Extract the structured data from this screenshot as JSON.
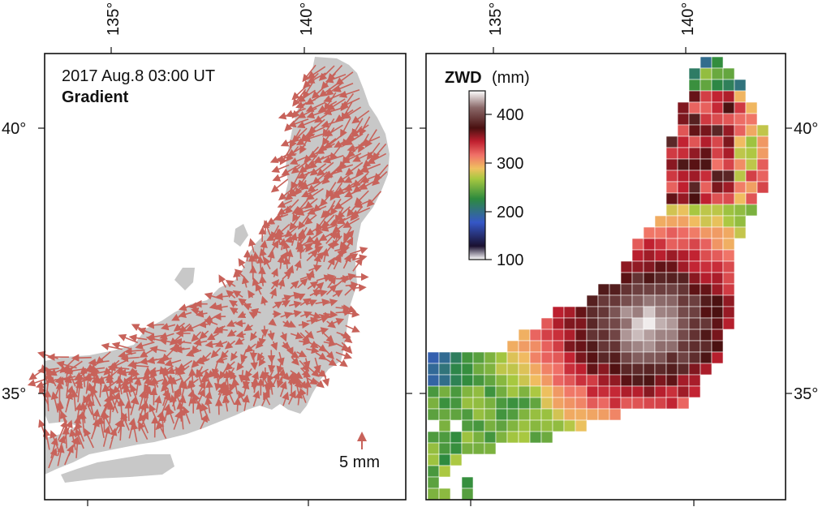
{
  "left_panel": {
    "timestamp": "2017 Aug.8 03:00 UT",
    "subtitle": "Gradient",
    "scale_label": "5 mm",
    "lon_labels": [
      "135°",
      "140°"
    ],
    "lat_labels": [
      "40°",
      "35°"
    ],
    "land_color": "#c8c8c8",
    "arrow_color": "#c8625a"
  },
  "right_panel": {
    "colorbar_title": "ZWD",
    "colorbar_unit": "(mm)",
    "colorbar_ticks": [
      "400",
      "300",
      "200",
      "100"
    ],
    "lon_labels": [
      "135°",
      "140°"
    ],
    "lat_labels": [
      "40°",
      "35°"
    ],
    "colormap": [
      "#ffffff",
      "#3b1e5e",
      "#3557c7",
      "#2d8a3e",
      "#9ac23c",
      "#e8e060",
      "#f07a6a",
      "#e0404a",
      "#6a1015",
      "#3b1a1a",
      "#c9b8b8",
      "#ffffff"
    ]
  }
}
